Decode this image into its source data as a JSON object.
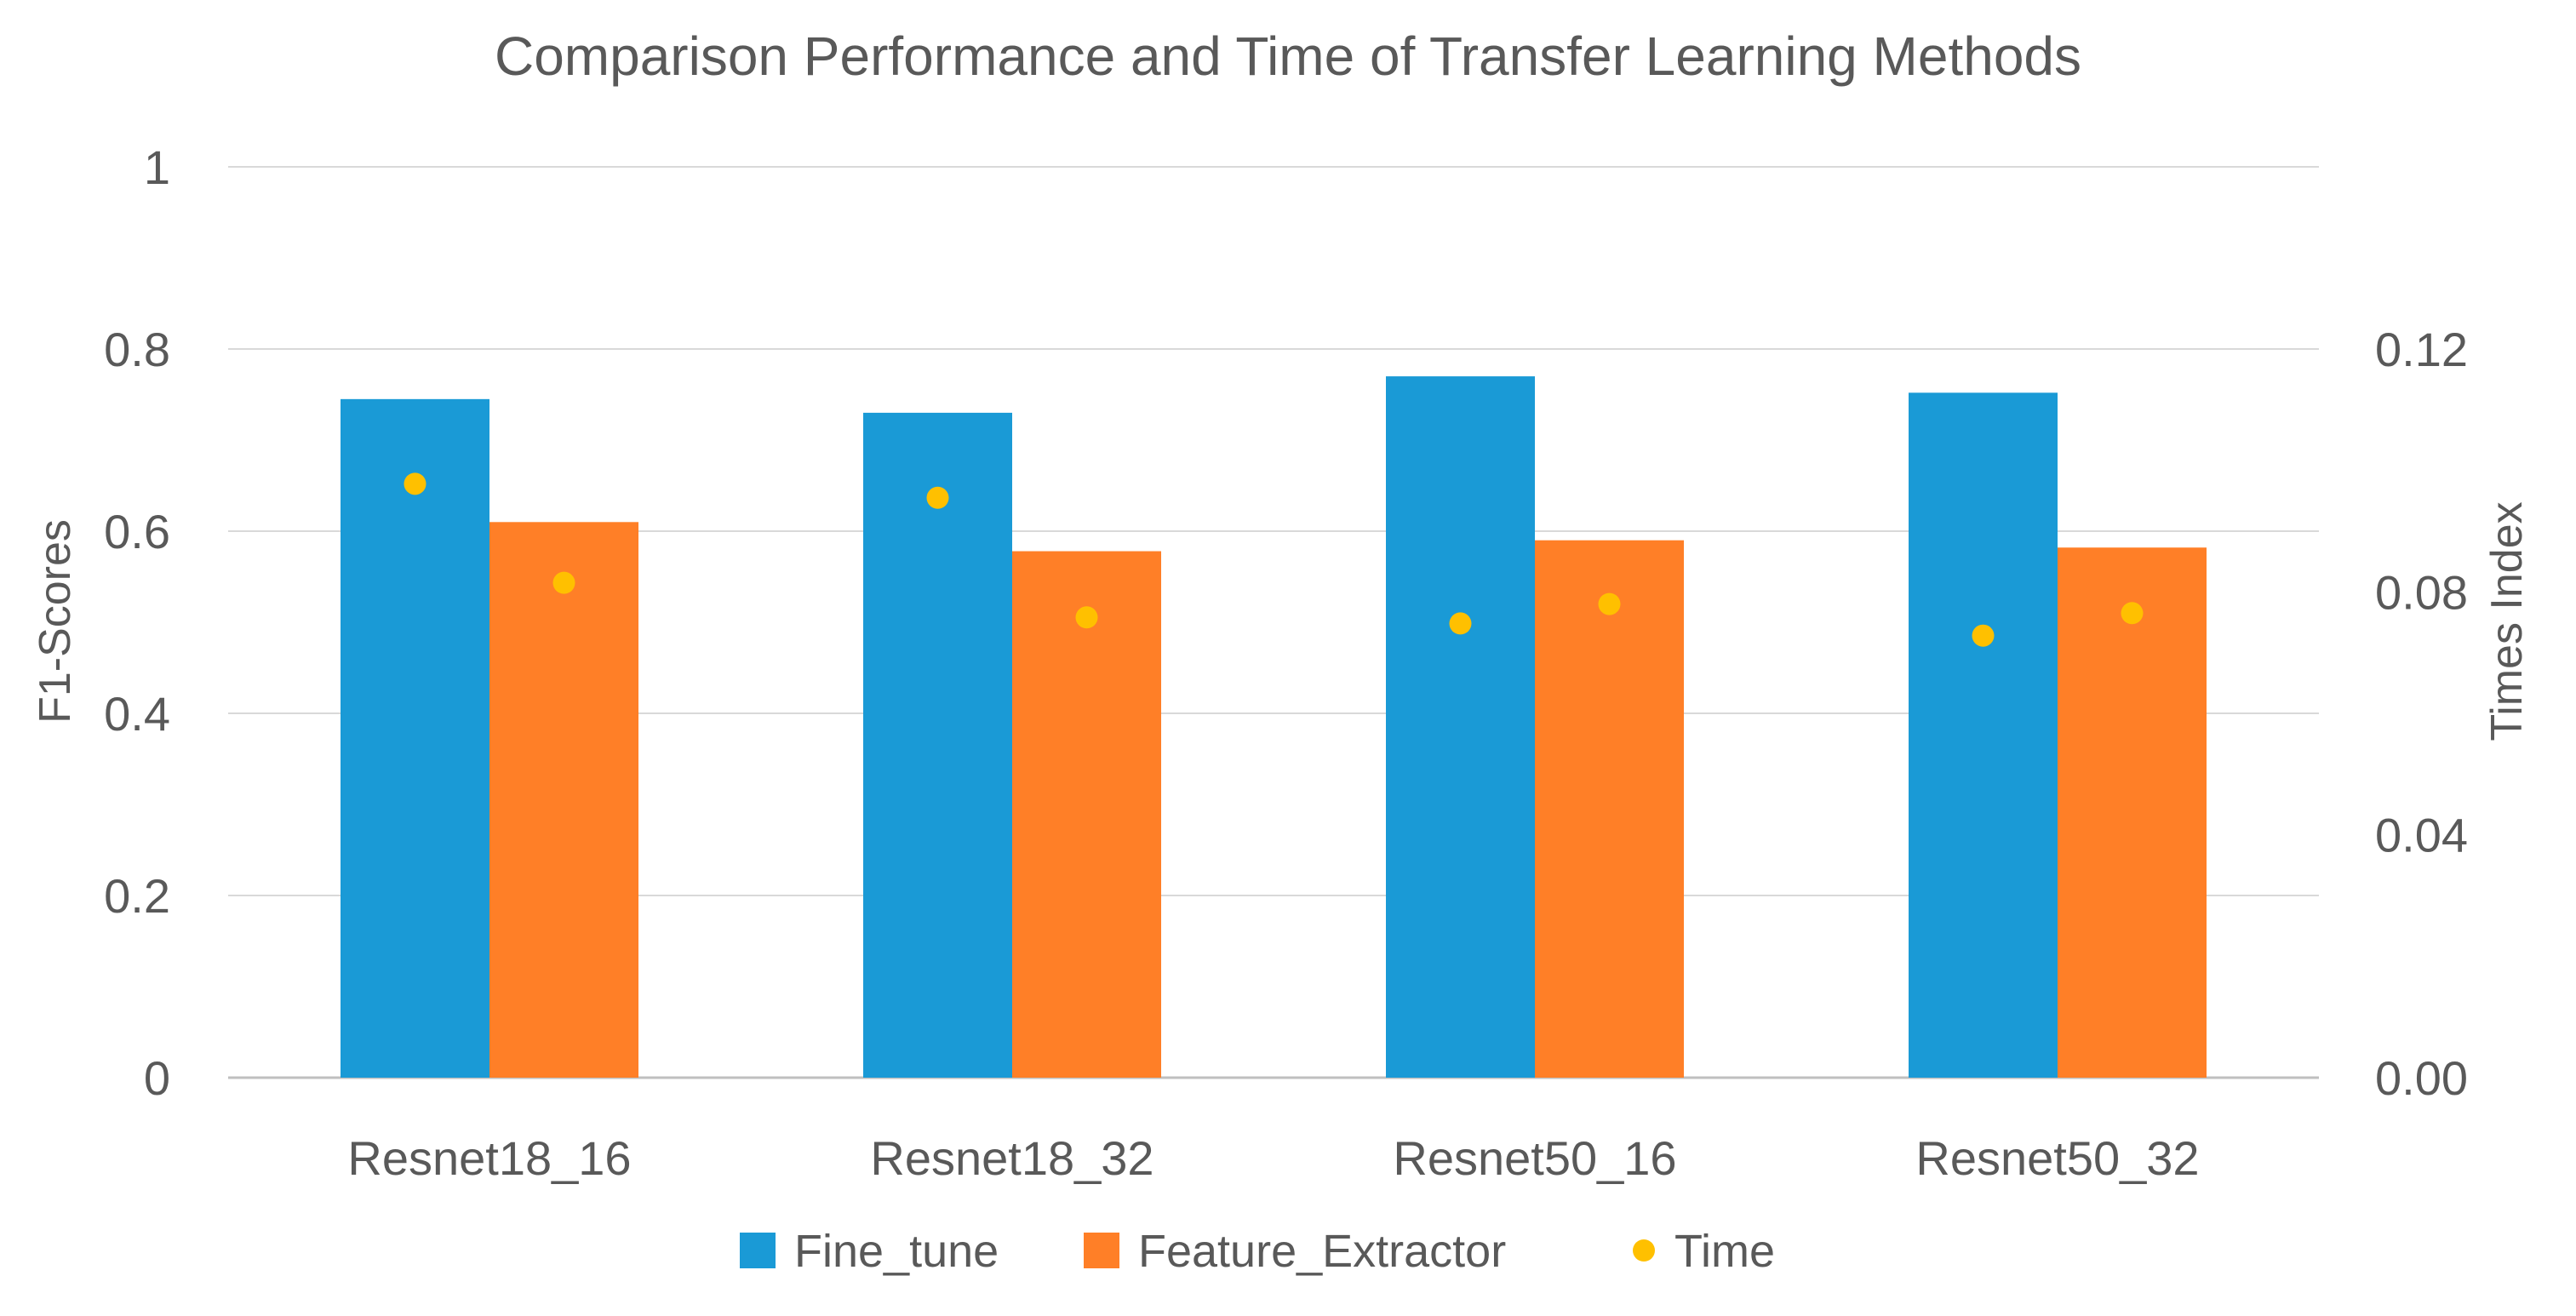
{
  "chart_data": {
    "type": "bar",
    "title": "Comparison Performance and Time of Transfer Learning Methods",
    "categories": [
      "Resnet18_16",
      "Resnet18_32",
      "Resnet50_16",
      "Resnet50_32"
    ],
    "ylabel": "F1-Scores",
    "y2label": "Times Index",
    "ylim": [
      0,
      1
    ],
    "y2lim": [
      0,
      0.15
    ],
    "yticks": [
      "0",
      "0.2",
      "0.4",
      "0.6",
      "0.8",
      "1"
    ],
    "y2ticks": [
      "0.00",
      "0.04",
      "0.08",
      "0.12"
    ],
    "grid": true,
    "legend_position": "bottom",
    "series": [
      {
        "name": "Fine_tune",
        "type": "bar",
        "axis": "left",
        "color": "#1A9AD6",
        "values": [
          0.745,
          0.73,
          0.77,
          0.752
        ]
      },
      {
        "name": "Feature_Extractor",
        "type": "bar",
        "axis": "left",
        "color": "#FF7F27",
        "values": [
          0.61,
          0.578,
          0.59,
          0.582
        ]
      },
      {
        "name": "Time",
        "type": "scatter",
        "axis": "right",
        "color": "#FFC000",
        "values": [
          0.0978,
          0.0955,
          0.0748,
          0.0728
        ],
        "positions": [
          "Fine_tune",
          "Fine_tune",
          "Fine_tune",
          "Fine_tune"
        ]
      },
      {
        "name": "",
        "type": "scatter",
        "axis": "right",
        "color": "#FFC000",
        "values": [
          0.0815,
          0.0758,
          0.078,
          0.0765
        ],
        "positions": [
          "Feature_Extractor",
          "Feature_Extractor",
          "Feature_Extractor",
          "Feature_Extractor"
        ]
      }
    ]
  }
}
